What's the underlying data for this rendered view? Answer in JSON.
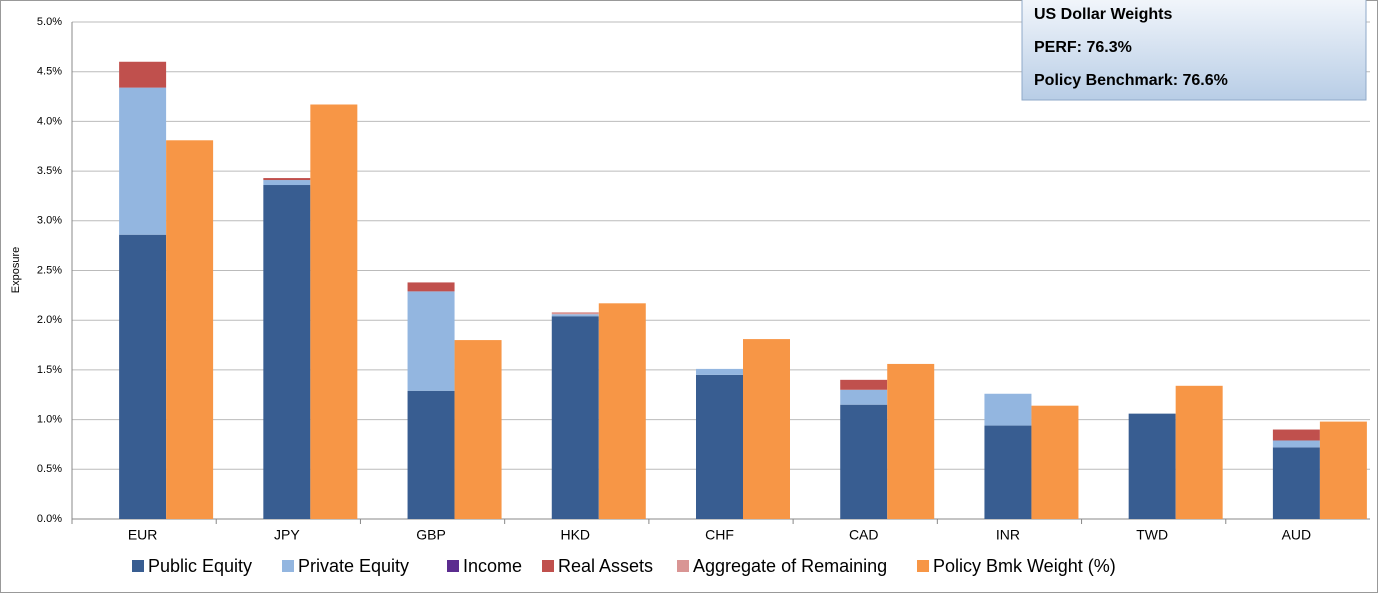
{
  "chart_data": {
    "type": "bar",
    "y_label": "Exposure",
    "annotations": [
      "US Dollar Weights",
      "PERF: 76.3%",
      "Policy Benchmark: 76.6%"
    ],
    "categories": [
      "EUR",
      "JPY",
      "GBP",
      "HKD",
      "CHF",
      "CAD",
      "INR",
      "TWD",
      "AUD"
    ],
    "series": [
      {
        "name": "Public Equity",
        "color": "#385d91",
        "stack": "left",
        "values": [
          2.86,
          3.36,
          1.29,
          2.04,
          1.45,
          1.15,
          0.94,
          1.06,
          0.72
        ]
      },
      {
        "name": "Private Equity",
        "color": "#93b6e0",
        "stack": "left",
        "values": [
          1.48,
          0.05,
          1.0,
          0.02,
          0.06,
          0.15,
          0.32,
          0,
          0.07
        ]
      },
      {
        "name": "Income",
        "color": "#5b2c8f",
        "stack": "left",
        "values": [
          0,
          0,
          0,
          0,
          0,
          0,
          0,
          0,
          0
        ]
      },
      {
        "name": "Real Assets",
        "color": "#c0504d",
        "stack": "left",
        "values": [
          0.26,
          0.02,
          0.09,
          0,
          0,
          0.1,
          0,
          0,
          0.11
        ]
      },
      {
        "name": "Aggregate of Remaining",
        "color": "#d99594",
        "stack": "left",
        "values": [
          0,
          0,
          0,
          0.02,
          0,
          0,
          0,
          0,
          0
        ]
      },
      {
        "name": "Policy Bmk Weight (%)",
        "color": "#f79646",
        "stack": "right",
        "values": [
          3.81,
          4.17,
          1.8,
          2.17,
          1.81,
          1.56,
          1.14,
          1.34,
          0.98
        ]
      }
    ],
    "ylim": [
      0,
      5
    ],
    "yticks": [
      {
        "value": 0,
        "label": "0.0%"
      },
      {
        "value": 0.5,
        "label": "0.5%"
      },
      {
        "value": 1,
        "label": "1.0%"
      },
      {
        "value": 1.5,
        "label": "1.5%"
      },
      {
        "value": 2,
        "label": "2.0%"
      },
      {
        "value": 2.5,
        "label": "2.5%"
      },
      {
        "value": 3,
        "label": "3.0%"
      },
      {
        "value": 3.5,
        "label": "3.5%"
      },
      {
        "value": 4,
        "label": "4.0%"
      },
      {
        "value": 4.5,
        "label": "4.5%"
      },
      {
        "value": 5,
        "label": "5.0%"
      }
    ],
    "grid": true
  }
}
